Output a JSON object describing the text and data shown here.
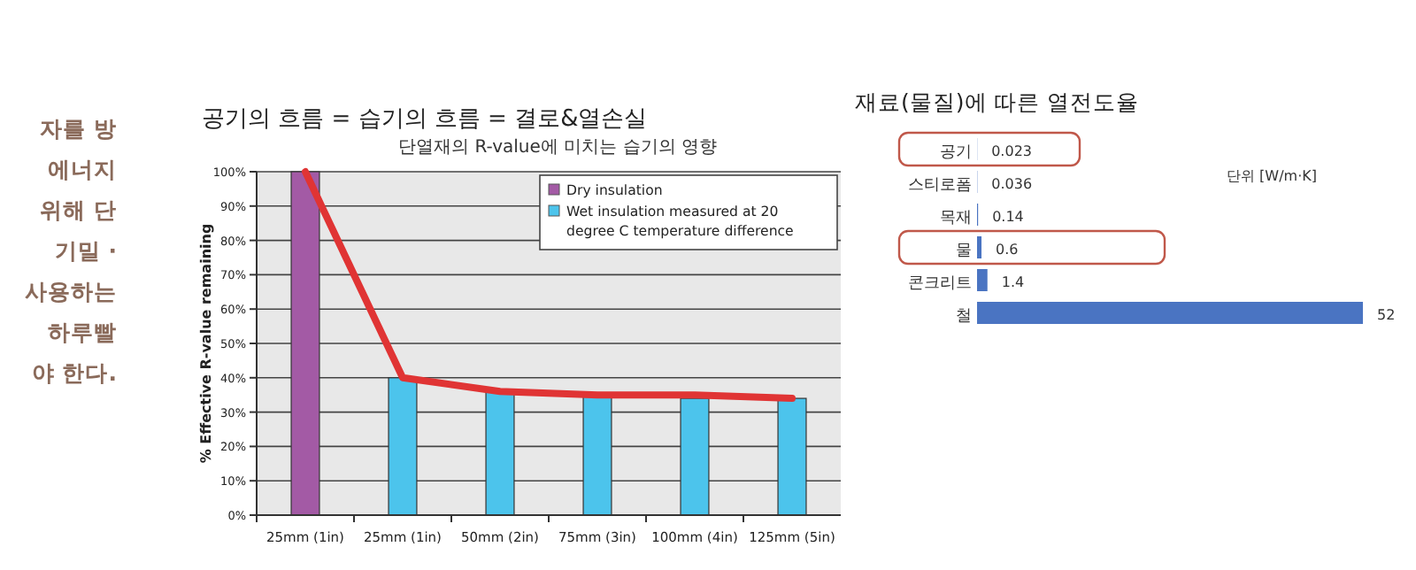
{
  "chart_data": [
    {
      "type": "other",
      "annotations": [
        "자를 방",
        "에너지",
        "위해 단",
        "기밀 ·",
        "사용하는",
        "하루빨",
        "야 한다."
      ]
    },
    {
      "type": "bar",
      "title": "공기의 흐름 = 습기의 흐름 = 결로&열손실",
      "subtitle": "단열재의 R-value에 미치는 습기의 영향",
      "ylabel": "% Effective R-value remaining",
      "categories": [
        "25mm (1in)",
        "25mm (1in)",
        "50mm (2in)",
        "75mm (3in)",
        "100mm (4in)",
        "125mm (5in)"
      ],
      "series": [
        {
          "name": "Dry insulation",
          "color": "#a35aa5",
          "values": [
            100,
            null,
            null,
            null,
            null,
            null
          ]
        },
        {
          "name": "Wet insulation measured at 20 degree C temperature difference",
          "color": "#4cc4ec",
          "values": [
            null,
            40,
            36,
            35,
            34,
            34
          ]
        },
        {
          "type": "line",
          "color": "#e03434",
          "values": [
            100,
            40,
            36,
            35,
            35,
            34
          ]
        }
      ],
      "ylim": [
        0,
        100
      ],
      "yticks": [
        {
          "value": 0,
          "label": "0%"
        },
        {
          "value": 10,
          "label": "10%"
        },
        {
          "value": 20,
          "label": "20%"
        },
        {
          "value": 30,
          "label": "30%"
        },
        {
          "value": 40,
          "label": "40%"
        },
        {
          "value": 50,
          "label": "50%"
        },
        {
          "value": 60,
          "label": "60%"
        },
        {
          "value": 70,
          "label": "70%"
        },
        {
          "value": 80,
          "label": "80%"
        },
        {
          "value": 90,
          "label": "90%"
        },
        {
          "value": 100,
          "label": "100%"
        }
      ],
      "grid": "y",
      "legend": "top right",
      "marker": "none",
      "line_style": "solid"
    },
    {
      "type": "bar",
      "orientation": "horizontal",
      "title": "재료(물질)에 따른 열전도율",
      "categories": [
        "공기",
        "스티로폼",
        "목재",
        "물",
        "콘크리트",
        "철"
      ],
      "values": [
        0.023,
        0.036,
        0.14,
        0.6,
        1.4,
        52
      ],
      "color": "#4a74c2",
      "data_labels": true,
      "annotations": [
        "단위 [W/m·K]"
      ]
    }
  ]
}
